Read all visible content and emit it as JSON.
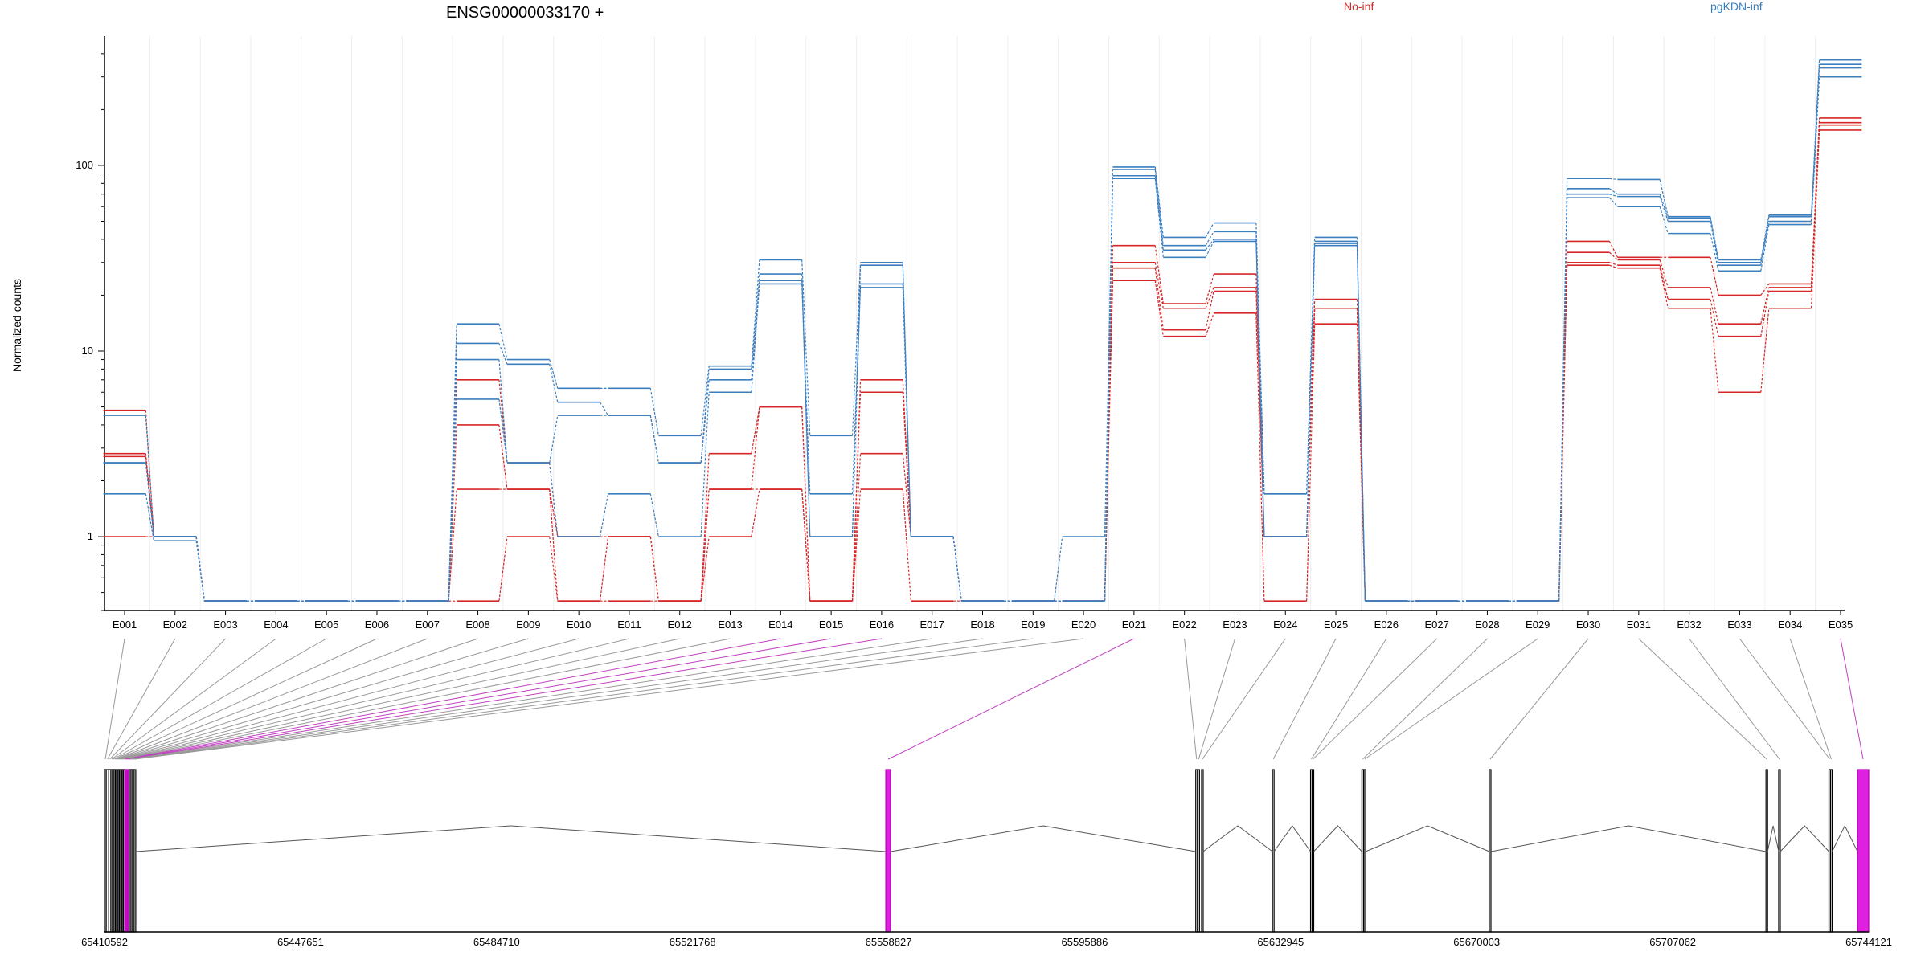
{
  "chart_data": {
    "type": "line",
    "title": "ENSG00000033170 +",
    "ylabel": "Normalized counts",
    "yscale": "log",
    "ylim": [
      0.4,
      450
    ],
    "yticks": [
      1,
      10,
      100
    ],
    "ytick_labels": [
      "1",
      "10",
      "100"
    ],
    "grid": "vertical-minor",
    "legend_position": "top",
    "legend": [
      {
        "name": "No-inf",
        "color": "#d62728"
      },
      {
        "name": "pgKDN-inf",
        "color": "#3c7fbf"
      }
    ],
    "categories": [
      "E001",
      "E002",
      "E003",
      "E004",
      "E005",
      "E006",
      "E007",
      "E008",
      "E009",
      "E010",
      "E011",
      "E012",
      "E013",
      "E014",
      "E015",
      "E016",
      "E017",
      "E018",
      "E019",
      "E020",
      "E021",
      "E022",
      "E023",
      "E024",
      "E025",
      "E026",
      "E027",
      "E028",
      "E029",
      "E030",
      "E031",
      "E032",
      "E033",
      "E034",
      "E035"
    ],
    "series": [
      {
        "group": "No-inf",
        "color": "#d62728",
        "values": [
          4.8,
          1.0,
          0.45,
          0.45,
          0.45,
          0.45,
          0.45,
          7.0,
          2.5,
          1.0,
          1.0,
          0.45,
          2.8,
          5.0,
          0.45,
          7.0,
          1.0,
          0.45,
          0.45,
          0.45,
          37,
          18,
          26,
          1.0,
          19,
          0.45,
          0.45,
          0.45,
          0.45,
          39,
          32,
          32,
          20,
          23,
          180
        ]
      },
      {
        "group": "No-inf",
        "color": "#d62728",
        "values": [
          2.8,
          1.0,
          0.45,
          0.45,
          0.45,
          0.45,
          0.45,
          4.0,
          1.8,
          1.0,
          1.0,
          0.45,
          1.8,
          5.0,
          0.45,
          6.0,
          1.0,
          0.45,
          0.45,
          0.45,
          30,
          17,
          22,
          1.0,
          17,
          0.45,
          0.45,
          0.45,
          0.45,
          34,
          31,
          22,
          14,
          22,
          170
        ]
      },
      {
        "group": "No-inf",
        "color": "#d62728",
        "values": [
          2.7,
          1.0,
          0.45,
          0.45,
          0.45,
          0.45,
          0.45,
          1.8,
          1.8,
          0.45,
          1.0,
          0.45,
          1.8,
          1.8,
          0.45,
          2.8,
          1.0,
          0.45,
          0.45,
          0.45,
          28,
          13,
          21,
          1.0,
          17,
          0.45,
          0.45,
          0.45,
          0.45,
          30,
          29,
          19,
          12,
          21,
          165
        ]
      },
      {
        "group": "No-inf",
        "color": "#d62728",
        "values": [
          1.0,
          1.0,
          0.45,
          0.45,
          0.45,
          0.45,
          0.45,
          0.45,
          1.0,
          0.45,
          0.45,
          0.45,
          1.0,
          1.8,
          0.45,
          1.8,
          0.45,
          0.45,
          0.45,
          0.45,
          24,
          12,
          16,
          0.45,
          14,
          0.45,
          0.45,
          0.45,
          0.45,
          29,
          28,
          17,
          6.0,
          17,
          155
        ]
      },
      {
        "group": "pgKDN-inf",
        "color": "#3c7fbf",
        "values": [
          4.5,
          1.0,
          0.45,
          0.45,
          0.45,
          0.45,
          0.45,
          14,
          9.0,
          6.3,
          6.3,
          3.5,
          8.3,
          31,
          3.5,
          30,
          1.0,
          0.45,
          0.45,
          1.0,
          98,
          41,
          49,
          1.7,
          41,
          0.45,
          0.45,
          0.45,
          0.45,
          85,
          84,
          53,
          31,
          54,
          370
        ]
      },
      {
        "group": "pgKDN-inf",
        "color": "#3c7fbf",
        "values": [
          2.5,
          1.0,
          0.45,
          0.45,
          0.45,
          0.45,
          0.45,
          11,
          8.5,
          5.3,
          4.5,
          2.5,
          8.0,
          26,
          1.0,
          29,
          1.0,
          0.45,
          0.45,
          0.45,
          95,
          37,
          44,
          1.7,
          39,
          0.45,
          0.45,
          0.45,
          0.45,
          75,
          70,
          52,
          30,
          53,
          350
        ]
      },
      {
        "group": "pgKDN-inf",
        "color": "#3c7fbf",
        "values": [
          2.5,
          1.0,
          0.45,
          0.45,
          0.45,
          0.45,
          0.45,
          9.0,
          2.5,
          4.5,
          4.5,
          2.5,
          7.0,
          24,
          1.0,
          23,
          1.0,
          0.45,
          0.45,
          0.45,
          88,
          35,
          40,
          1.0,
          38,
          0.45,
          0.45,
          0.45,
          0.45,
          70,
          68,
          50,
          29,
          50,
          335
        ]
      },
      {
        "group": "pgKDN-inf",
        "color": "#3c7fbf",
        "values": [
          1.7,
          0.95,
          0.45,
          0.45,
          0.45,
          0.45,
          0.45,
          5.5,
          2.5,
          1.0,
          1.7,
          1.0,
          6.0,
          23,
          1.7,
          22,
          1.0,
          0.45,
          0.45,
          0.45,
          85,
          32,
          39,
          1.0,
          37,
          0.45,
          0.45,
          0.45,
          0.45,
          67,
          60,
          43,
          27,
          48,
          300
        ]
      }
    ],
    "genomic_axis": {
      "tick_labels": [
        "65410592",
        "65447651",
        "65484710",
        "65521768",
        "65558827",
        "65595886",
        "65632945",
        "65670003",
        "65707062",
        "65744121"
      ],
      "range": [
        65410592,
        65744121
      ],
      "exons": [
        {
          "id": "E001",
          "start": 65410592,
          "end": 65410900,
          "highlight": false
        },
        {
          "id": "E002",
          "start": 65410900,
          "end": 65411400,
          "highlight": false
        },
        {
          "id": "E003",
          "start": 65411400,
          "end": 65411800,
          "highlight": false
        },
        {
          "id": "E004",
          "start": 65411800,
          "end": 65412100,
          "highlight": false
        },
        {
          "id": "E005",
          "start": 65412100,
          "end": 65412400,
          "highlight": false
        },
        {
          "id": "E006",
          "start": 65412400,
          "end": 65412650,
          "highlight": false
        },
        {
          "id": "E007",
          "start": 65412650,
          "end": 65412900,
          "highlight": false
        },
        {
          "id": "E008",
          "start": 65412900,
          "end": 65413150,
          "highlight": false
        },
        {
          "id": "E009",
          "start": 65413150,
          "end": 65413400,
          "highlight": false
        },
        {
          "id": "E010",
          "start": 65413400,
          "end": 65413650,
          "highlight": false
        },
        {
          "id": "E011",
          "start": 65413650,
          "end": 65413900,
          "highlight": false
        },
        {
          "id": "E012",
          "start": 65413900,
          "end": 65414150,
          "highlight": false
        },
        {
          "id": "E013",
          "start": 65414150,
          "end": 65414400,
          "highlight": false
        },
        {
          "id": "E014",
          "start": 65414400,
          "end": 65414700,
          "highlight": true
        },
        {
          "id": "E015",
          "start": 65414700,
          "end": 65415000,
          "highlight": true
        },
        {
          "id": "E016",
          "start": 65415000,
          "end": 65415300,
          "highlight": true
        },
        {
          "id": "E017",
          "start": 65415300,
          "end": 65415600,
          "highlight": false
        },
        {
          "id": "E018",
          "start": 65415600,
          "end": 65415900,
          "highlight": false
        },
        {
          "id": "E019",
          "start": 65415900,
          "end": 65416200,
          "highlight": false
        },
        {
          "id": "E020",
          "start": 65416200,
          "end": 65416500,
          "highlight": false
        },
        {
          "id": "E021",
          "start": 65558300,
          "end": 65559200,
          "highlight": true
        },
        {
          "id": "E022",
          "start": 65616900,
          "end": 65617200,
          "highlight": false
        },
        {
          "id": "E023",
          "start": 65617300,
          "end": 65617600,
          "highlight": false
        },
        {
          "id": "E024",
          "start": 65618000,
          "end": 65618300,
          "highlight": false
        },
        {
          "id": "E025",
          "start": 65631400,
          "end": 65631700,
          "highlight": false
        },
        {
          "id": "E026",
          "start": 65638600,
          "end": 65638900,
          "highlight": false
        },
        {
          "id": "E027",
          "start": 65638900,
          "end": 65639200,
          "highlight": false
        },
        {
          "id": "E028",
          "start": 65648300,
          "end": 65648600,
          "highlight": false
        },
        {
          "id": "E029",
          "start": 65648700,
          "end": 65649000,
          "highlight": false
        },
        {
          "id": "E030",
          "start": 65672400,
          "end": 65672700,
          "highlight": false
        },
        {
          "id": "E031",
          "start": 65724700,
          "end": 65725000,
          "highlight": false
        },
        {
          "id": "E032",
          "start": 65727100,
          "end": 65727400,
          "highlight": false
        },
        {
          "id": "E033",
          "start": 65736600,
          "end": 65736900,
          "highlight": false
        },
        {
          "id": "E034",
          "start": 65736900,
          "end": 65737200,
          "highlight": false
        },
        {
          "id": "E035",
          "start": 65742000,
          "end": 65744121,
          "highlight": true
        }
      ]
    }
  }
}
